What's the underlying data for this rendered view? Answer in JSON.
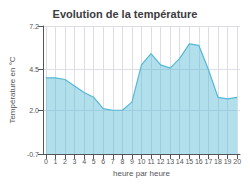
{
  "chart_data": {
    "type": "area",
    "title": "Evolution de la température",
    "xlabel": "heure par heure",
    "ylabel": "Température en °C",
    "x": [
      0,
      1,
      2,
      3,
      4,
      5,
      6,
      7,
      8,
      9,
      10,
      11,
      12,
      13,
      14,
      15,
      16,
      17,
      18,
      19,
      20
    ],
    "values": [
      4.0,
      4.0,
      3.9,
      3.5,
      3.1,
      2.8,
      2.1,
      2.0,
      2.0,
      2.5,
      4.8,
      5.5,
      4.8,
      4.6,
      5.2,
      6.1,
      6.0,
      4.5,
      2.8,
      2.7,
      2.8
    ],
    "color": "#55b8d4",
    "xlim": [
      -0.3,
      20.3
    ],
    "xticks": [
      0,
      1,
      2,
      3,
      4,
      5,
      6,
      7,
      8,
      9,
      10,
      11,
      12,
      13,
      14,
      15,
      16,
      17,
      18,
      19,
      20
    ],
    "ylim": [
      -0.7,
      7.2
    ],
    "yticks": [
      -0.7,
      {
        "value": 2.0,
        "label": "2.0"
      },
      4.5,
      7.2
    ],
    "grid": true
  }
}
